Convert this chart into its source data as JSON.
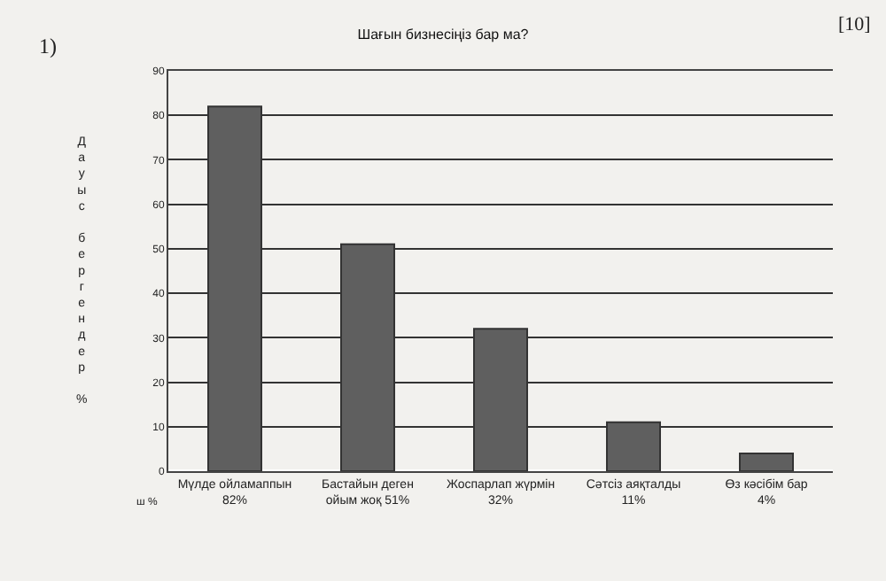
{
  "chart_data": {
    "type": "bar",
    "title": "Шағын бизнесіңіз бар ма?",
    "ylabel": "Дауыс бергендер %",
    "categories": [
      "Мүлде ойламаппын 82%",
      "Бастайын деген ойым жоқ 51%",
      "Жоспарлап жүрмін 32%",
      "Сәтсіз аяқталды 11%",
      "Өз кәсібім бар 4%"
    ],
    "values": [
      82,
      51,
      32,
      11,
      4
    ],
    "color": "#5f5f5f",
    "ylim": [
      0,
      90
    ],
    "yticks": [
      0,
      10,
      20,
      30,
      40,
      50,
      60,
      70,
      80,
      90
    ],
    "grid": "y",
    "legend": false,
    "annotations": [
      "1)",
      "[10]",
      "ш %"
    ]
  }
}
